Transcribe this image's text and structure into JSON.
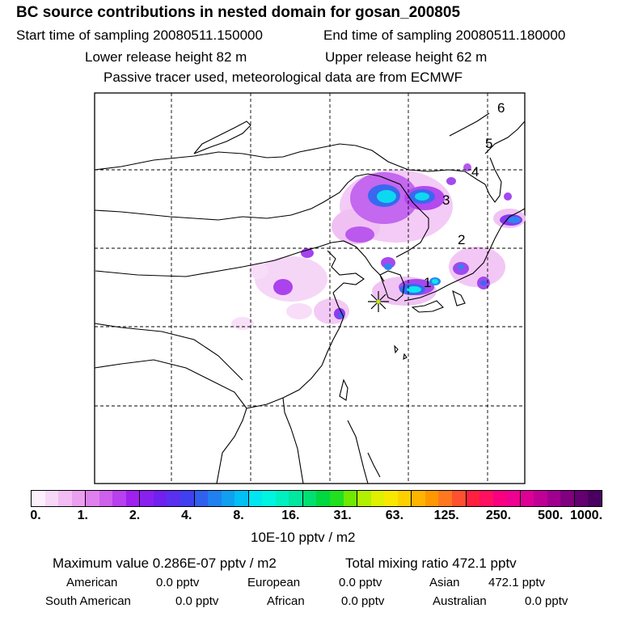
{
  "header": {
    "title": "BC  source contributions in nested domain for gosan_200805",
    "start_time": "Start time of sampling 20080511.150000",
    "end_time": "End time of sampling 20080511.180000",
    "lower_height": "Lower release height   82 m",
    "upper_height": "Upper release height   62 m",
    "tracer_note": "Passive tracer used, meteorological data are from ECMWF"
  },
  "map": {
    "trajectory_labels": [
      "1",
      "2",
      "3",
      "4",
      "5",
      "6"
    ],
    "receptor_marker": "star-icon"
  },
  "colorbar": {
    "tick_labels": [
      "0.",
      "1.",
      "2.",
      "4.",
      "8.",
      "16.",
      "31.",
      "63.",
      "125.",
      "250.",
      "500.",
      "1000."
    ],
    "colors": [
      "#fdf0fd",
      "#f8d8f8",
      "#f2bdf2",
      "#eba0ef",
      "#e080ee",
      "#cf60ec",
      "#b840ee",
      "#a020f0",
      "#8a20f0",
      "#7020f0",
      "#5a30f0",
      "#4040f0",
      "#3060ee",
      "#2080f0",
      "#10a0f0",
      "#00c0f5",
      "#00e6f0",
      "#00f5e0",
      "#00f0c0",
      "#00e8a0",
      "#00e070",
      "#00d840",
      "#20e020",
      "#70e800",
      "#b0f000",
      "#e0f000",
      "#f8e800",
      "#ffd000",
      "#ffb400",
      "#ff9800",
      "#ff7820",
      "#ff5030",
      "#ff2040",
      "#ff1060",
      "#f80080",
      "#ee0090",
      "#dd0095",
      "#c00095",
      "#a00090",
      "#800080",
      "#640070",
      "#4a0060"
    ],
    "units": "10E-10 pptv / m2"
  },
  "stats": {
    "max_value": "Maximum value  0.286E-07 pptv / m2",
    "total_mixing": "Total mixing ratio      472.1  pptv",
    "american_label": "American",
    "american_value": "0.0 pptv",
    "european_label": "European",
    "european_value": "0.0 pptv",
    "asian_label": "Asian",
    "asian_value": "472.1 pptv",
    "south_american_label": "South American",
    "south_american_value": "0.0 pptv",
    "african_label": "African",
    "african_value": "0.0 pptv",
    "australian_label": "Australian",
    "australian_value": "0.0 pptv"
  }
}
